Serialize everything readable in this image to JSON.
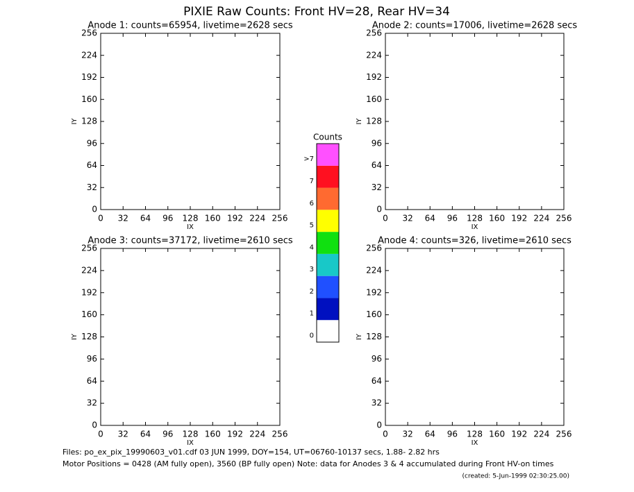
{
  "title": "PIXIE Raw Counts:  Front HV=28, Rear HV=34",
  "chart_data": [
    {
      "type": "heatmap",
      "title": "Anode 1: counts=65954, livetime=2628 secs",
      "xlabel": "IX",
      "ylabel": "IY",
      "xlim": [
        0,
        256
      ],
      "ylim": [
        0,
        256
      ],
      "xticks": [
        0,
        32,
        64,
        96,
        128,
        160,
        192,
        224,
        256
      ],
      "yticks": [
        0,
        32,
        64,
        96,
        128,
        160,
        192,
        224,
        256
      ]
    },
    {
      "type": "heatmap",
      "title": "Anode 2: counts=17006, livetime=2628 secs",
      "xlabel": "IX",
      "ylabel": "IY",
      "xlim": [
        0,
        256
      ],
      "ylim": [
        0,
        256
      ],
      "xticks": [
        0,
        32,
        64,
        96,
        128,
        160,
        192,
        224,
        256
      ],
      "yticks": [
        0,
        32,
        64,
        96,
        128,
        160,
        192,
        224,
        256
      ]
    },
    {
      "type": "heatmap",
      "title": "Anode 3: counts=37172, livetime=2610 secs",
      "xlabel": "IX",
      "ylabel": "IY",
      "xlim": [
        0,
        256
      ],
      "ylim": [
        0,
        256
      ],
      "xticks": [
        0,
        32,
        64,
        96,
        128,
        160,
        192,
        224,
        256
      ],
      "yticks": [
        0,
        32,
        64,
        96,
        128,
        160,
        192,
        224,
        256
      ]
    },
    {
      "type": "heatmap",
      "title": "Anode 4: counts=326, livetime=2610 secs",
      "xlabel": "IX",
      "ylabel": "IY",
      "xlim": [
        0,
        256
      ],
      "ylim": [
        0,
        256
      ],
      "xticks": [
        0,
        32,
        64,
        96,
        128,
        160,
        192,
        224,
        256
      ],
      "yticks": [
        0,
        32,
        64,
        96,
        128,
        160,
        192,
        224,
        256
      ]
    }
  ],
  "colorbar": {
    "title": "Counts",
    "levels": [
      "0",
      "1",
      "2",
      "3",
      "4",
      "5",
      "6",
      "7",
      ">7"
    ],
    "colors": [
      "#ffffff",
      "#0010c0",
      "#2050ff",
      "#18c8c8",
      "#10e010",
      "#ffff00",
      "#ff6a30",
      "#ff1020",
      "#ff50ff"
    ]
  },
  "footer": [
    "Files: po_ex_pix_19990603_v01.cdf    03 JUN 1999, DOY=154, UT=06760-10137 secs,  1.88- 2.82 hrs",
    "Motor Positions = 0428 (AM fully open), 3560 (BP fully open)    Note: data for Anodes 3 & 4 accumulated during Front HV-on times",
    "(created:  5-Jun-1999 02:30:25.00)"
  ]
}
